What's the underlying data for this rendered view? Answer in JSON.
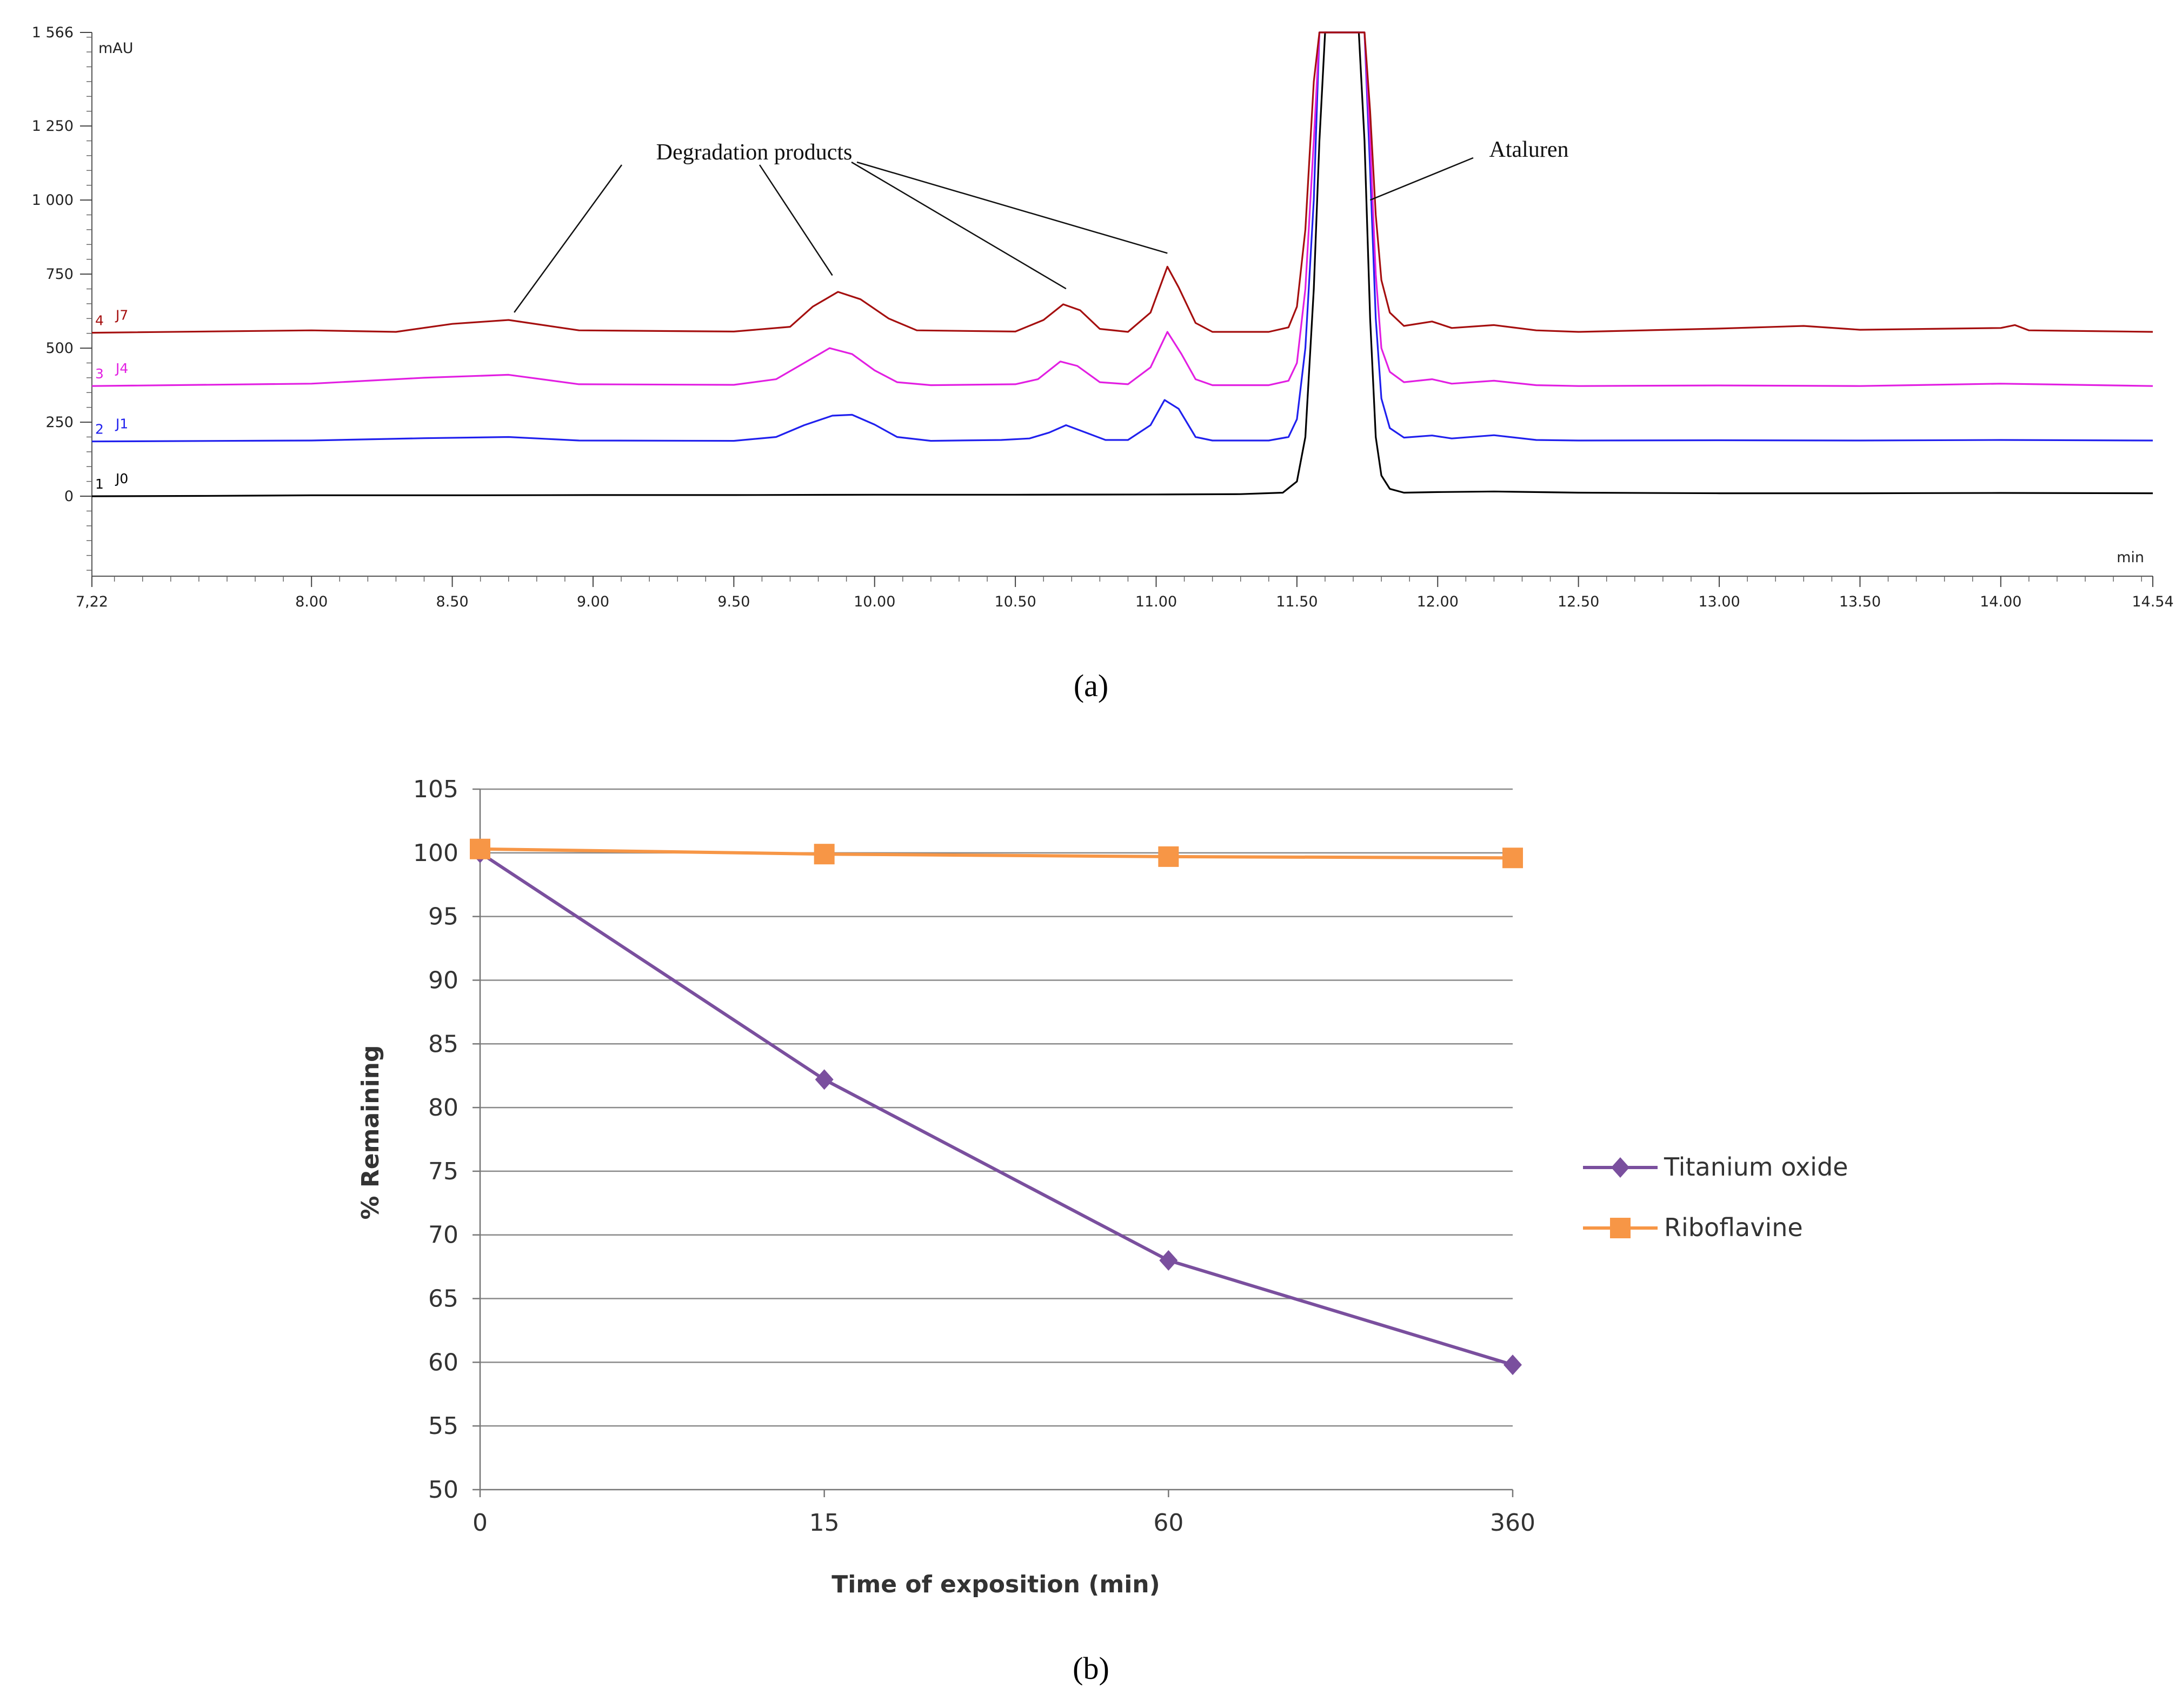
{
  "figure": {
    "panel_a_label": "(a)",
    "panel_b_label": "(b)"
  },
  "chart_data": [
    {
      "type": "line",
      "panel": "a",
      "yunit": "mAU",
      "xunit": "min",
      "y_ticks": [
        "0",
        "250",
        "500",
        "750",
        "1 000",
        "1 250",
        "1 566"
      ],
      "y_tick_values": [
        0,
        250,
        500,
        750,
        1000,
        1250,
        1566
      ],
      "x_ticks": [
        "7,22",
        "8.00",
        "8.50",
        "9.00",
        "9.50",
        "10.00",
        "10.50",
        "11.00",
        "11.50",
        "12.00",
        "12.50",
        "13.00",
        "13.50",
        "14.00",
        "14.54"
      ],
      "x_tick_values": [
        7.22,
        8.0,
        8.5,
        9.0,
        9.5,
        10.0,
        10.5,
        11.0,
        11.5,
        12.0,
        12.5,
        13.0,
        13.5,
        14.0,
        14.54
      ],
      "xlim": [
        7.22,
        14.54
      ],
      "ylim": [
        -270,
        1566
      ],
      "annotations": {
        "degradation": "Degradation products",
        "ataluren": "Ataluren",
        "degradation_targets": [
          {
            "x": 8.72,
            "y": 595
          },
          {
            "x": 9.85,
            "y": 720
          },
          {
            "x": 10.68,
            "y": 675
          },
          {
            "x": 11.04,
            "y": 795
          }
        ],
        "ataluren_target": {
          "x": 11.76,
          "y": 1000
        }
      },
      "series": [
        {
          "index": "1",
          "name": "J0",
          "color": "#000000",
          "baseline": 0,
          "points": [
            [
              7.22,
              0
            ],
            [
              7.6,
              1
            ],
            [
              8.0,
              3
            ],
            [
              8.5,
              3
            ],
            [
              9.0,
              4
            ],
            [
              9.5,
              4
            ],
            [
              10.0,
              5
            ],
            [
              10.5,
              5
            ],
            [
              11.0,
              6
            ],
            [
              11.3,
              7
            ],
            [
              11.45,
              12
            ],
            [
              11.5,
              50
            ],
            [
              11.53,
              200
            ],
            [
              11.56,
              700
            ],
            [
              11.58,
              1200
            ],
            [
              11.6,
              1566
            ],
            [
              11.72,
              1566
            ],
            [
              11.74,
              1200
            ],
            [
              11.76,
              600
            ],
            [
              11.78,
              200
            ],
            [
              11.8,
              70
            ],
            [
              11.83,
              25
            ],
            [
              11.88,
              12
            ],
            [
              12.0,
              14
            ],
            [
              12.2,
              16
            ],
            [
              12.5,
              12
            ],
            [
              13.0,
              10
            ],
            [
              13.5,
              10
            ],
            [
              14.0,
              11
            ],
            [
              14.54,
              10
            ]
          ]
        },
        {
          "index": "2",
          "name": "J1",
          "color": "#2020ee",
          "baseline": 185,
          "points": [
            [
              7.22,
              185
            ],
            [
              8.0,
              188
            ],
            [
              8.4,
              196
            ],
            [
              8.7,
              200
            ],
            [
              8.95,
              188
            ],
            [
              9.5,
              187
            ],
            [
              9.65,
              200
            ],
            [
              9.75,
              240
            ],
            [
              9.85,
              272
            ],
            [
              9.92,
              275
            ],
            [
              10.0,
              242
            ],
            [
              10.08,
              200
            ],
            [
              10.2,
              187
            ],
            [
              10.45,
              190
            ],
            [
              10.55,
              195
            ],
            [
              10.62,
              215
            ],
            [
              10.68,
              240
            ],
            [
              10.75,
              215
            ],
            [
              10.82,
              190
            ],
            [
              10.9,
              190
            ],
            [
              10.98,
              240
            ],
            [
              11.03,
              325
            ],
            [
              11.08,
              295
            ],
            [
              11.14,
              200
            ],
            [
              11.2,
              188
            ],
            [
              11.4,
              188
            ],
            [
              11.47,
              200
            ],
            [
              11.5,
              260
            ],
            [
              11.53,
              500
            ],
            [
              11.56,
              1000
            ],
            [
              11.58,
              1566
            ],
            [
              11.74,
              1566
            ],
            [
              11.76,
              1100
            ],
            [
              11.78,
              600
            ],
            [
              11.8,
              330
            ],
            [
              11.83,
              230
            ],
            [
              11.88,
              198
            ],
            [
              11.98,
              205
            ],
            [
              12.05,
              195
            ],
            [
              12.2,
              206
            ],
            [
              12.35,
              190
            ],
            [
              12.5,
              188
            ],
            [
              13.0,
              189
            ],
            [
              13.5,
              188
            ],
            [
              14.0,
              190
            ],
            [
              14.54,
              188
            ]
          ]
        },
        {
          "index": "3",
          "name": "J4",
          "color": "#e21fe2",
          "baseline": 372,
          "points": [
            [
              7.22,
              372
            ],
            [
              8.0,
              380
            ],
            [
              8.4,
              400
            ],
            [
              8.7,
              410
            ],
            [
              8.95,
              378
            ],
            [
              9.5,
              376
            ],
            [
              9.65,
              395
            ],
            [
              9.75,
              450
            ],
            [
              9.84,
              500
            ],
            [
              9.92,
              480
            ],
            [
              10.0,
              425
            ],
            [
              10.08,
              385
            ],
            [
              10.2,
              375
            ],
            [
              10.5,
              378
            ],
            [
              10.58,
              395
            ],
            [
              10.66,
              455
            ],
            [
              10.72,
              440
            ],
            [
              10.8,
              385
            ],
            [
              10.9,
              378
            ],
            [
              10.98,
              435
            ],
            [
              11.04,
              555
            ],
            [
              11.09,
              480
            ],
            [
              11.14,
              395
            ],
            [
              11.2,
              375
            ],
            [
              11.4,
              375
            ],
            [
              11.47,
              390
            ],
            [
              11.5,
              450
            ],
            [
              11.53,
              700
            ],
            [
              11.56,
              1200
            ],
            [
              11.58,
              1566
            ],
            [
              11.74,
              1566
            ],
            [
              11.76,
              1200
            ],
            [
              11.78,
              750
            ],
            [
              11.8,
              500
            ],
            [
              11.83,
              420
            ],
            [
              11.88,
              385
            ],
            [
              11.98,
              395
            ],
            [
              12.05,
              380
            ],
            [
              12.2,
              390
            ],
            [
              12.35,
              375
            ],
            [
              12.5,
              372
            ],
            [
              13.0,
              374
            ],
            [
              13.5,
              372
            ],
            [
              14.0,
              380
            ],
            [
              14.54,
              372
            ]
          ]
        },
        {
          "index": "4",
          "name": "J7",
          "color": "#a50f0f",
          "baseline": 552,
          "points": [
            [
              7.22,
              552
            ],
            [
              8.0,
              560
            ],
            [
              8.3,
              555
            ],
            [
              8.5,
              582
            ],
            [
              8.7,
              595
            ],
            [
              8.95,
              560
            ],
            [
              9.5,
              556
            ],
            [
              9.7,
              572
            ],
            [
              9.78,
              640
            ],
            [
              9.87,
              690
            ],
            [
              9.95,
              665
            ],
            [
              10.05,
              600
            ],
            [
              10.15,
              560
            ],
            [
              10.5,
              556
            ],
            [
              10.6,
              595
            ],
            [
              10.67,
              648
            ],
            [
              10.73,
              628
            ],
            [
              10.8,
              565
            ],
            [
              10.9,
              555
            ],
            [
              10.98,
              620
            ],
            [
              11.04,
              775
            ],
            [
              11.08,
              705
            ],
            [
              11.14,
              585
            ],
            [
              11.2,
              555
            ],
            [
              11.4,
              555
            ],
            [
              11.47,
              570
            ],
            [
              11.5,
              640
            ],
            [
              11.53,
              900
            ],
            [
              11.56,
              1400
            ],
            [
              11.58,
              1566
            ],
            [
              11.74,
              1566
            ],
            [
              11.76,
              1300
            ],
            [
              11.78,
              950
            ],
            [
              11.8,
              730
            ],
            [
              11.83,
              620
            ],
            [
              11.88,
              575
            ],
            [
              11.98,
              590
            ],
            [
              12.05,
              568
            ],
            [
              12.2,
              578
            ],
            [
              12.35,
              560
            ],
            [
              12.5,
              555
            ],
            [
              13.0,
              566
            ],
            [
              13.3,
              575
            ],
            [
              13.5,
              562
            ],
            [
              14.0,
              568
            ],
            [
              14.05,
              578
            ],
            [
              14.1,
              560
            ],
            [
              14.54,
              555
            ]
          ]
        }
      ]
    },
    {
      "type": "line",
      "panel": "b",
      "categories": [
        "0",
        "15",
        "60",
        "360"
      ],
      "xlabel": "Time of exposition (min)",
      "ylabel": "% Remaining",
      "ylim": [
        50,
        105
      ],
      "yticks": [
        "50",
        "55",
        "60",
        "65",
        "70",
        "75",
        "80",
        "85",
        "90",
        "95",
        "100",
        "105"
      ],
      "ytick_values": [
        50,
        55,
        60,
        65,
        70,
        75,
        80,
        85,
        90,
        95,
        100,
        105
      ],
      "legend_position": "right",
      "series": [
        {
          "name": "Titanium oxide",
          "color": "#7a4f9e",
          "marker": "diamond",
          "values": [
            100,
            82.2,
            68,
            59.8
          ]
        },
        {
          "name": "Riboflavine",
          "color": "#f79646",
          "marker": "square",
          "values": [
            100.3,
            99.9,
            99.7,
            99.6
          ]
        }
      ]
    }
  ]
}
